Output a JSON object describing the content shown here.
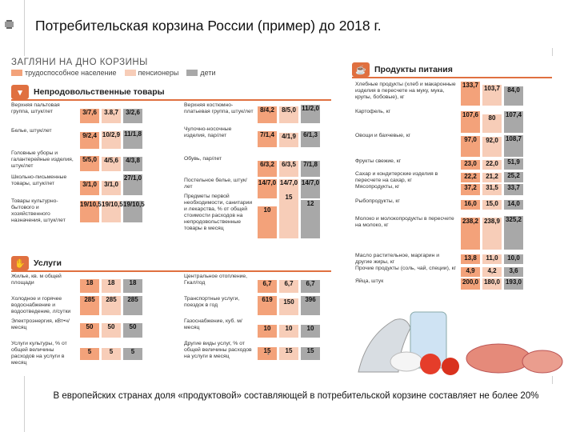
{
  "slide": {
    "title": "Потребительская корзина России (пример) до 2018 г.",
    "caption": "В европейских странах доля «продуктовой» составляющей в потребительской корзине составляет не более 20%"
  },
  "infographic": {
    "title": "ЗАГЛЯНИ НА ДНО КОРЗИНЫ",
    "legend": [
      "трудоспособное население",
      "пенсионеры",
      "дети"
    ],
    "colors": {
      "working": "#f3a27a",
      "pensioners": "#f7cdb8",
      "children": "#a8a8a8",
      "accent": "#e07040"
    },
    "nonfood": {
      "header": "Непродовольственные товары",
      "left": [
        {
          "label": "Верхняя пальтовая группа, штук/лет",
          "values": [
            "3/7,6",
            "3.8,7",
            "3/2,6"
          ]
        },
        {
          "label": "Белье, штук/лет",
          "values": [
            "9/2,4",
            "10/2,9",
            "11/1,8"
          ]
        },
        {
          "label": "Головные уборы и галантерейные изделия, штук/лет",
          "values": [
            "5/5,0",
            "4/5,6",
            "4/3,8"
          ]
        },
        {
          "label": "Школьно-письменные товары, штук/лет",
          "values": [
            "3/1,0",
            "3/1,0",
            "27/1,0"
          ]
        },
        {
          "label": "Товары культурно-бытового и хозяйственного назначения, штук/лет",
          "values": [
            "19/10,5",
            "19/10,5",
            "19/10,5"
          ]
        }
      ],
      "right": [
        {
          "label": "Верхняя костюмно-платьевая группа, штук/лет",
          "values": [
            "8/4,2",
            "8/5,0",
            "11/2,0"
          ]
        },
        {
          "label": "Чулочно-носочные изделия, пар/лет",
          "values": [
            "7/1,4",
            "4/1,9",
            "6/1,3"
          ]
        },
        {
          "label": "Обувь, пар/лет",
          "values": [
            "6/3,2",
            "6/3,5",
            "7/1,8"
          ]
        },
        {
          "label": "Постельное белье, штук/лет",
          "values": [
            "14/7,0",
            "14/7,0",
            "14/7,0"
          ]
        },
        {
          "label": "Предметы первой необходимости, санитарии и лекарства, % от общей стоимости расходов на непродовольственные товары в месяц",
          "values": [
            "10",
            "15",
            "12"
          ]
        }
      ]
    },
    "services": {
      "header": "Услуги",
      "left": [
        {
          "label": "Жилье, кв. м общей площади",
          "values": [
            "18",
            "18",
            "18"
          ]
        },
        {
          "label": "Холодное и горячее водоснабжение и водоотведение, л/сутки",
          "values": [
            "285",
            "285",
            "285"
          ]
        },
        {
          "label": "Электроэнергия, кВт•ч/месяц",
          "values": [
            "50",
            "50",
            "50"
          ]
        },
        {
          "label": "Услуги культуры, % от общей величины расходов на услуги в месяц",
          "values": [
            "5",
            "5",
            "5"
          ]
        }
      ],
      "right": [
        {
          "label": "Центральное отопление, Гкал/год",
          "values": [
            "6,7",
            "6,7",
            "6,7"
          ]
        },
        {
          "label": "Транспортные услуги, поездок в год",
          "values": [
            "619",
            "150",
            "396"
          ]
        },
        {
          "label": "Газоснабжение, куб. м/месяц",
          "values": [
            "10",
            "10",
            "10"
          ]
        },
        {
          "label": "Другие виды услуг, % от общей величины расходов на услуги в месяц",
          "values": [
            "15",
            "15",
            "15"
          ]
        }
      ]
    },
    "food": {
      "header": "Продукты питания",
      "rows": [
        {
          "label": "Хлебные продукты (хлеб и макаронные изделия в пересчете на муку, мука, крупы, бобовые), кг",
          "values": [
            "133,7",
            "103,7",
            "84,0"
          ]
        },
        {
          "label": "Картофель, кг",
          "values": [
            "107,6",
            "80",
            "107,4"
          ]
        },
        {
          "label": "Овощи и бахчевые, кг",
          "values": [
            "97,0",
            "92,0",
            "108,7"
          ]
        },
        {
          "label": "Фрукты свежие, кг",
          "values": [
            "23,0",
            "22,0",
            "51,9"
          ]
        },
        {
          "label": "Сахар и кондитерские изделия в пересчете на сахар, кг",
          "values": [
            "22,2",
            "21,2",
            "25,2"
          ]
        },
        {
          "label": "Мясопродукты, кг",
          "values": [
            "37,2",
            "31,5",
            "33,7"
          ]
        },
        {
          "label": "Рыбопродукты, кг",
          "values": [
            "16,0",
            "15,0",
            "14,0"
          ]
        },
        {
          "label": "Молоко и молокопродукты в пересчете на молоко, кг",
          "values": [
            "238,2",
            "238,9",
            "325,2"
          ]
        },
        {
          "label": "Масло растительное, маргарин и другие жиры, кг",
          "values": [
            "13,8",
            "11,0",
            "10,0"
          ]
        },
        {
          "label": "Прочие продукты (соль, чай, специи), кг",
          "values": [
            "4,9",
            "4,2",
            "3,6"
          ]
        },
        {
          "label": "Яйца, штук",
          "values": [
            "200,0",
            "180,0",
            "193,0"
          ]
        }
      ]
    }
  }
}
